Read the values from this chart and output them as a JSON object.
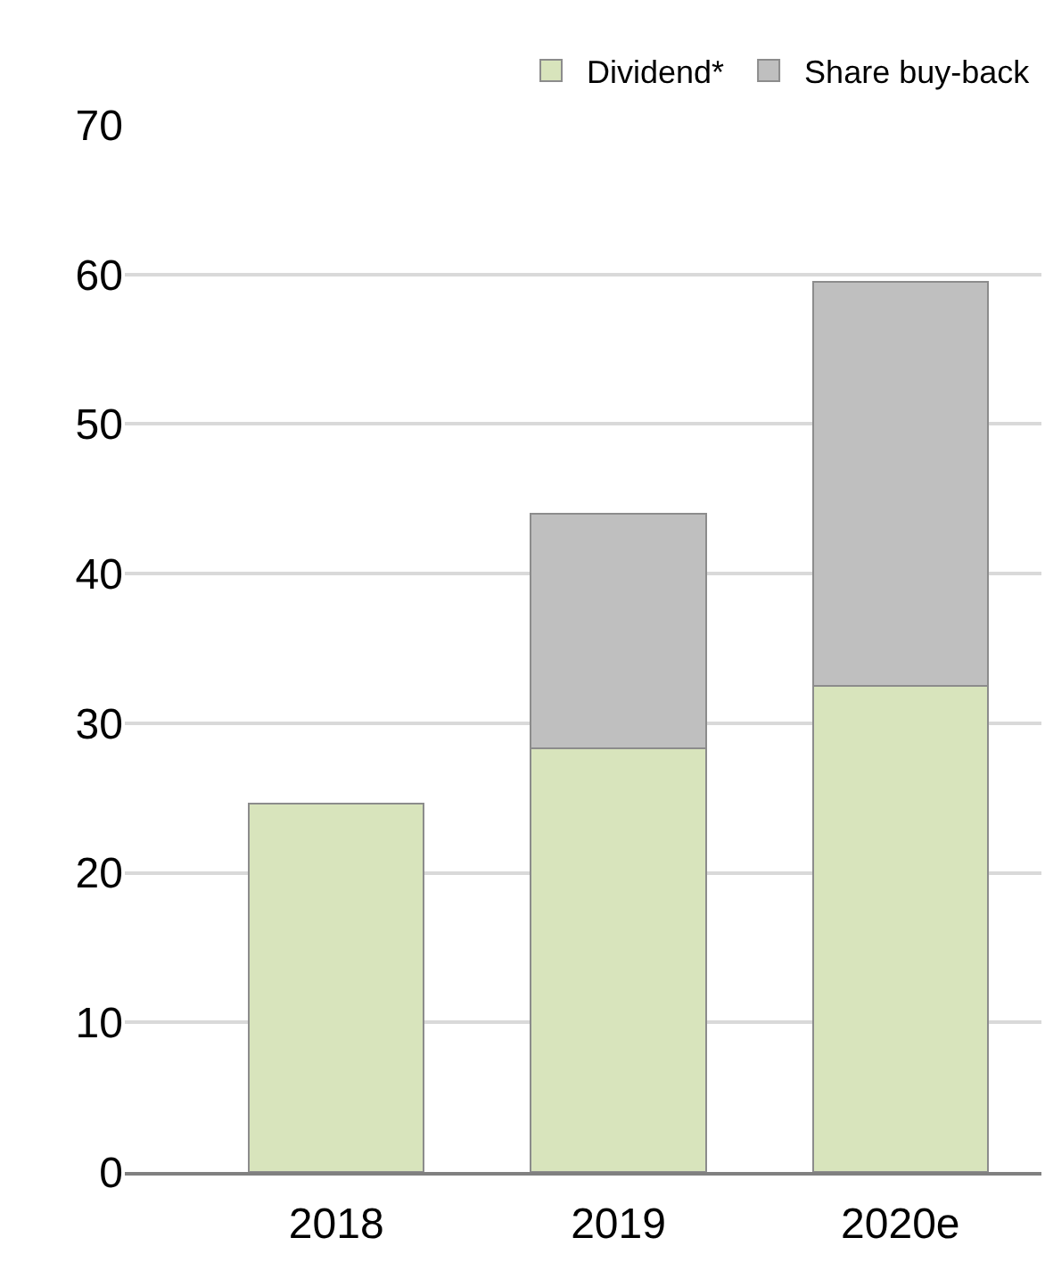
{
  "chart_data": {
    "type": "bar",
    "stacked": true,
    "categories": [
      "2018",
      "2019",
      "2020e"
    ],
    "series": [
      {
        "name": "Dividend*",
        "color": "#d8e4bc",
        "values": [
          24.6,
          28.3,
          32.5
        ]
      },
      {
        "name": "Share buy-back",
        "color": "#bfbfbf",
        "values": [
          null,
          15.7,
          27.0
        ]
      }
    ],
    "ylim": [
      0,
      70
    ],
    "yticks": [
      0,
      10,
      20,
      30,
      40,
      50,
      60,
      70
    ],
    "grid": "y",
    "legend": "top right"
  }
}
